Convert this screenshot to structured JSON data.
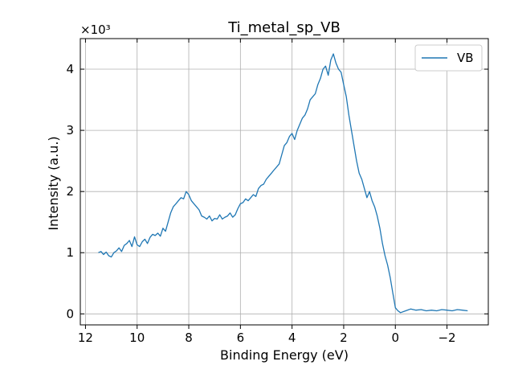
{
  "chart_data": {
    "type": "line",
    "title": "Ti_metal_sp_VB",
    "xlabel": "Binding Energy (eV)",
    "ylabel": "Intensity (a.u.)",
    "y_multiplier_label": "×10³",
    "xlim": [
      12.2,
      -3.6
    ],
    "ylim": [
      -0.18,
      4.5
    ],
    "x_reversed": true,
    "grid": true,
    "legend_position": "top-right",
    "x_ticks": [
      12,
      10,
      8,
      6,
      4,
      2,
      0,
      -2
    ],
    "x_tick_labels": [
      "12",
      "10",
      "8",
      "6",
      "4",
      "2",
      "0",
      "−2"
    ],
    "y_ticks": [
      0,
      1,
      2,
      3,
      4
    ],
    "y_tick_labels": [
      "0",
      "1",
      "2",
      "3",
      "4"
    ],
    "series": [
      {
        "name": "VB",
        "color": "#1f77b4",
        "x": [
          11.5,
          11.4,
          11.3,
          11.2,
          11.1,
          11.0,
          10.9,
          10.8,
          10.7,
          10.6,
          10.5,
          10.4,
          10.3,
          10.2,
          10.1,
          10.0,
          9.9,
          9.8,
          9.7,
          9.6,
          9.5,
          9.4,
          9.3,
          9.2,
          9.1,
          9.0,
          8.9,
          8.8,
          8.7,
          8.6,
          8.5,
          8.4,
          8.3,
          8.2,
          8.1,
          8.0,
          7.9,
          7.8,
          7.7,
          7.6,
          7.5,
          7.4,
          7.3,
          7.2,
          7.1,
          7.0,
          6.9,
          6.8,
          6.7,
          6.6,
          6.5,
          6.4,
          6.3,
          6.2,
          6.1,
          6.0,
          5.9,
          5.8,
          5.7,
          5.6,
          5.5,
          5.4,
          5.3,
          5.2,
          5.1,
          5.0,
          4.9,
          4.8,
          4.7,
          4.6,
          4.5,
          4.4,
          4.3,
          4.2,
          4.1,
          4.0,
          3.9,
          3.8,
          3.7,
          3.6,
          3.5,
          3.4,
          3.3,
          3.2,
          3.1,
          3.0,
          2.9,
          2.8,
          2.7,
          2.6,
          2.5,
          2.4,
          2.3,
          2.2,
          2.1,
          2.0,
          1.9,
          1.8,
          1.7,
          1.6,
          1.5,
          1.4,
          1.3,
          1.2,
          1.1,
          1.0,
          0.9,
          0.8,
          0.7,
          0.6,
          0.5,
          0.4,
          0.3,
          0.2,
          0.1,
          0.0,
          -0.1,
          -0.2,
          -0.4,
          -0.6,
          -0.8,
          -1.0,
          -1.2,
          -1.4,
          -1.6,
          -1.8,
          -2.0,
          -2.2,
          -2.4,
          -2.6,
          -2.8
        ],
        "y": [
          1.0,
          1.02,
          0.97,
          1.01,
          0.95,
          0.93,
          1.0,
          1.03,
          1.08,
          1.02,
          1.12,
          1.15,
          1.2,
          1.1,
          1.26,
          1.13,
          1.1,
          1.18,
          1.22,
          1.15,
          1.25,
          1.3,
          1.28,
          1.32,
          1.27,
          1.4,
          1.35,
          1.5,
          1.65,
          1.75,
          1.8,
          1.85,
          1.9,
          1.88,
          2.0,
          1.95,
          1.85,
          1.8,
          1.75,
          1.7,
          1.6,
          1.58,
          1.55,
          1.6,
          1.52,
          1.56,
          1.55,
          1.62,
          1.55,
          1.58,
          1.6,
          1.65,
          1.58,
          1.62,
          1.72,
          1.8,
          1.82,
          1.88,
          1.85,
          1.9,
          1.95,
          1.92,
          2.05,
          2.1,
          2.12,
          2.2,
          2.25,
          2.3,
          2.35,
          2.4,
          2.45,
          2.6,
          2.75,
          2.8,
          2.9,
          2.95,
          2.85,
          3.0,
          3.1,
          3.2,
          3.25,
          3.35,
          3.5,
          3.55,
          3.6,
          3.75,
          3.85,
          4.0,
          4.05,
          3.9,
          4.15,
          4.25,
          4.1,
          4.0,
          3.95,
          3.75,
          3.55,
          3.25,
          3.0,
          2.75,
          2.5,
          2.3,
          2.2,
          2.05,
          1.9,
          2.0,
          1.85,
          1.75,
          1.6,
          1.4,
          1.15,
          0.95,
          0.8,
          0.6,
          0.35,
          0.1,
          0.05,
          0.02,
          0.05,
          0.08,
          0.06,
          0.07,
          0.05,
          0.06,
          0.05,
          0.07,
          0.06,
          0.05,
          0.07,
          0.06,
          0.05
        ]
      }
    ]
  }
}
